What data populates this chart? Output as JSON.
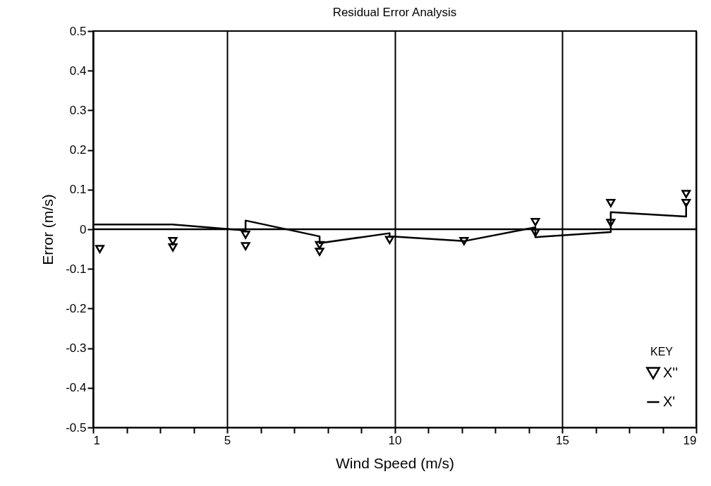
{
  "chart_data": {
    "type": "scatter",
    "title": "Residual Error Analysis",
    "xlabel": "Wind Speed (m/s)",
    "ylabel": "Error (m/s)",
    "legend_title": "KEY",
    "series": [
      {
        "name": "X''",
        "color": "#000000",
        "marker": "triangle",
        "x": [
          1.2,
          3.38,
          3.38,
          5.55,
          5.55,
          7.76,
          7.76,
          9.85,
          12.07,
          14.2,
          14.2,
          16.45,
          16.45,
          18.7,
          18.7
        ],
        "values": [
          -0.05,
          -0.03,
          -0.046,
          -0.014,
          -0.043,
          -0.04,
          -0.057,
          -0.027,
          -0.03,
          0.018,
          -0.009,
          0.066,
          0.016,
          0.089,
          0.066
        ]
      },
      {
        "name": "X'",
        "type": "line",
        "color": "#000000",
        "marker": "none",
        "line_style": "solid",
        "x": [
          1.0,
          3.38,
          5.55,
          5.55,
          7.76,
          7.76,
          9.85,
          9.85,
          12.07,
          14.2,
          14.2,
          16.45,
          16.45,
          18.7,
          18.7
        ],
        "values": [
          0.012,
          0.012,
          -0.003,
          0.022,
          -0.018,
          -0.035,
          -0.01,
          -0.018,
          -0.03,
          0.005,
          -0.02,
          -0.007,
          0.043,
          0.032,
          0.066
        ]
      }
    ],
    "xlim": [
      1,
      19
    ],
    "xticks": [
      1,
      {
        "value": 2,
        "label": null
      },
      {
        "value": 3,
        "label": null
      },
      {
        "value": 4,
        "label": null
      },
      5,
      {
        "value": 6,
        "label": null
      },
      {
        "value": 7,
        "label": null
      },
      {
        "value": 8,
        "label": null
      },
      {
        "value": 9,
        "label": null
      },
      10,
      {
        "value": 11,
        "label": null
      },
      {
        "value": 12,
        "label": null
      },
      {
        "value": 13,
        "label": null
      },
      {
        "value": 14,
        "label": null
      },
      15,
      {
        "value": 16,
        "label": null
      },
      {
        "value": 17,
        "label": null
      },
      {
        "value": 18,
        "label": null
      },
      19
    ],
    "ylim": [
      -0.5,
      0.5
    ],
    "yticks": [
      -0.5,
      -0.4,
      -0.3,
      -0.2,
      -0.1,
      0,
      0.1,
      0.2,
      0.3,
      0.4,
      0.5
    ],
    "ref_lines": [
      {
        "axis": "y",
        "value": 0,
        "color": "#000000"
      }
    ],
    "grid": "x",
    "legend": "bottom right"
  }
}
